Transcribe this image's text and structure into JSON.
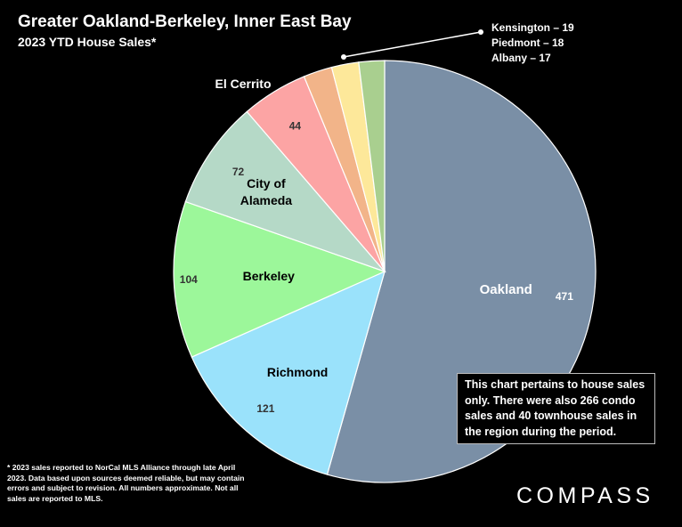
{
  "title": "Greater Oakland-Berkeley, Inner East Bay",
  "subtitle": "2023 YTD House Sales*",
  "note": "This chart pertains to house sales only. There were also 266 condo sales and 40 townhouse sales in the region during the period.",
  "footnote": "* 2023 sales reported to NorCal MLS Alliance through late April 2023. Data based upon sources deemed reliable, but may contain errors and subject to revision. All numbers approximate. Not all sales are reported to MLS.",
  "logo": "COMPASS",
  "chart_data": {
    "type": "pie",
    "title": "Greater Oakland-Berkeley, Inner East Bay",
    "subtitle": "2023 YTD House Sales*",
    "slices": [
      {
        "label": "Oakland",
        "value": 471,
        "color": "#7a8fa6"
      },
      {
        "label": "Richmond",
        "value": 121,
        "color": "#9ae2fb"
      },
      {
        "label": "Berkeley",
        "value": 104,
        "color": "#9cf79a"
      },
      {
        "label": "City of Alameda",
        "value": 72,
        "color": "#b5d9c7"
      },
      {
        "label": "El Cerrito",
        "value": 44,
        "color": "#fca4a4"
      },
      {
        "label": "Kensington",
        "value": 19,
        "color": "#f2b489"
      },
      {
        "label": "Piedmont",
        "value": 18,
        "color": "#fde89a"
      },
      {
        "label": "Albany",
        "value": 17,
        "color": "#a9cf8f"
      }
    ],
    "callout": [
      "Kensington – 19",
      "Piedmont – 18",
      "Albany – 17"
    ]
  }
}
